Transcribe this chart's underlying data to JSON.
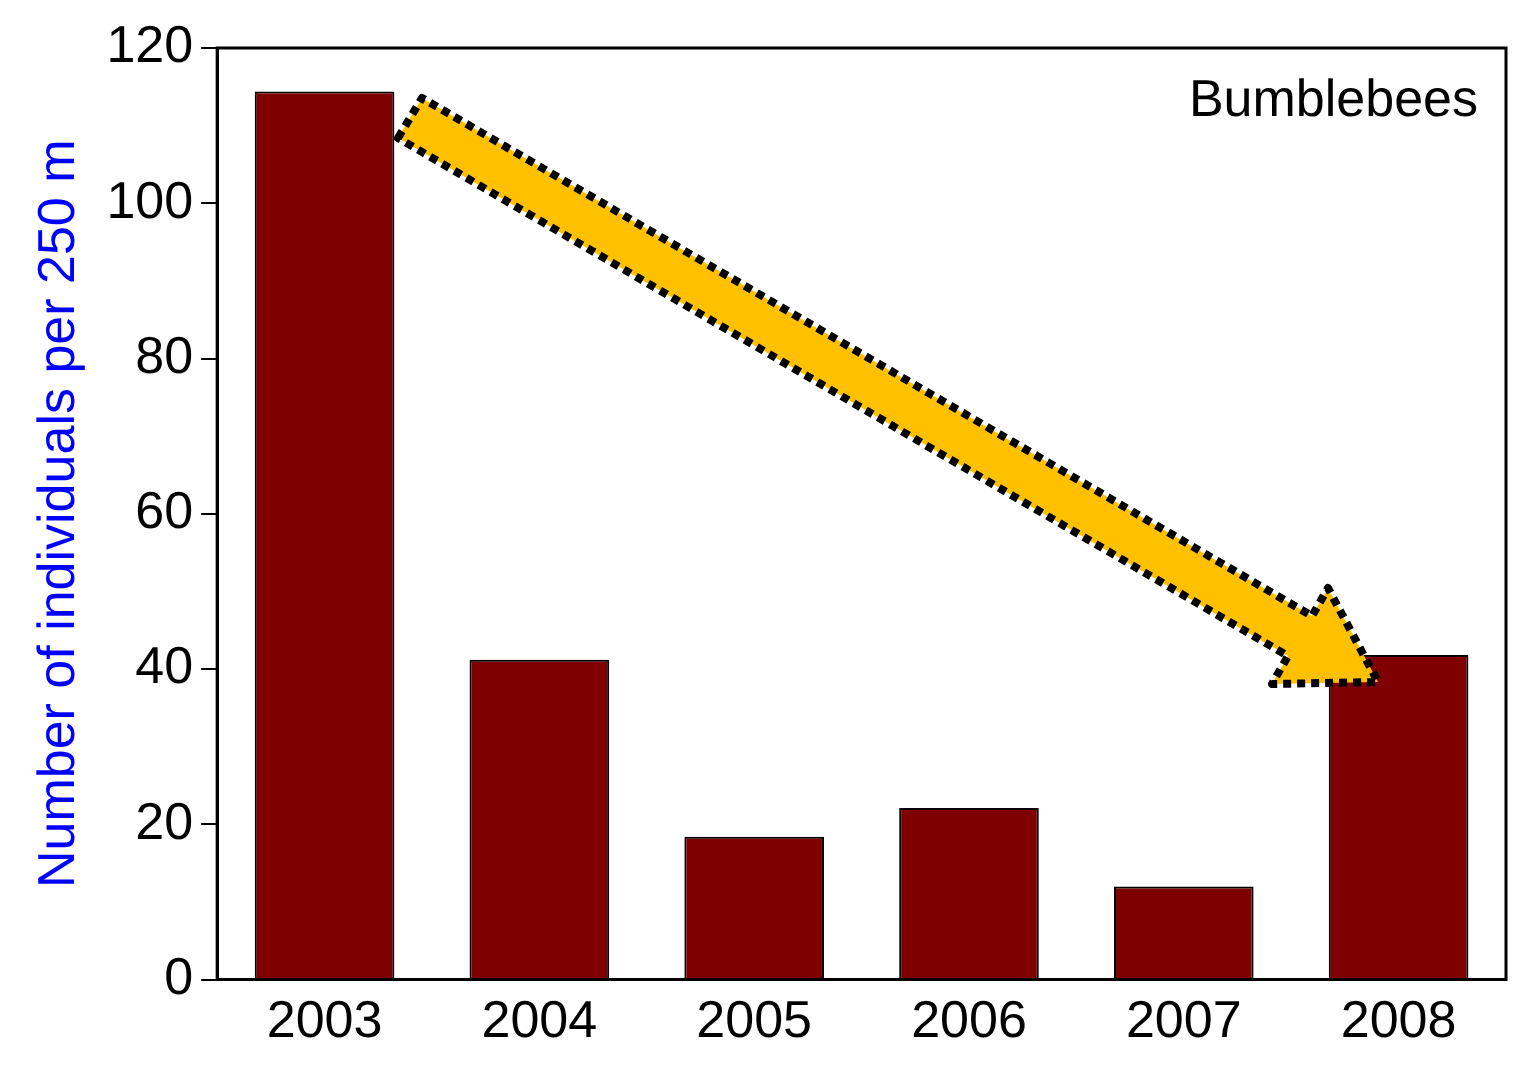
{
  "chart_data": {
    "type": "bar",
    "ylabel": "Number of individuals per 250 m",
    "categories": [
      "2003",
      "2004",
      "2005",
      "2006",
      "2007",
      "2008"
    ],
    "values": [
      114.4,
      41.2,
      18.4,
      22.1,
      12.0,
      41.8
    ],
    "color": "#7f0000",
    "ylim": [
      0,
      120
    ],
    "yticks": [
      0,
      20,
      40,
      60,
      80,
      100,
      120
    ],
    "grid": false,
    "legend": false,
    "annotations": [
      "Bumblebees"
    ]
  }
}
